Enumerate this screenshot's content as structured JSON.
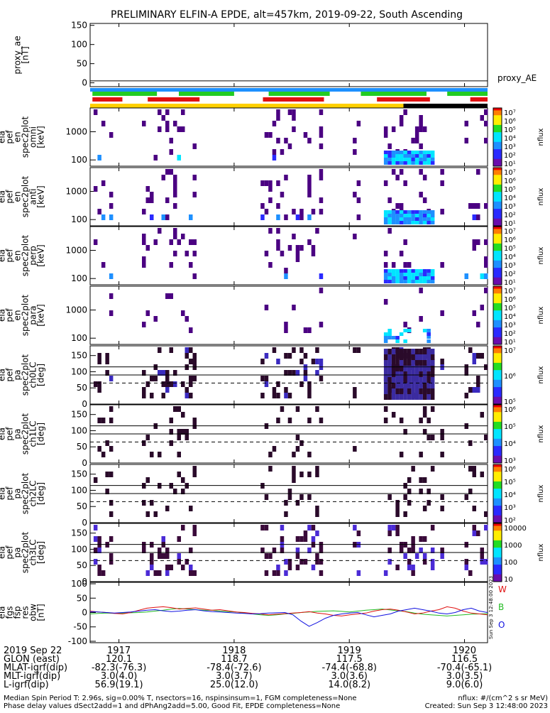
{
  "title": "PRELIMINARY ELFIN-A EPDE, alt=457km, 2019-09-22, South Ascending",
  "colors": {
    "bar_blue": "#1e90ff",
    "bar_green": "#22cc22",
    "bar_red": "#e01010",
    "bar_yellow": "#ffd000",
    "bar_black": "#000000"
  },
  "proxy_panel": {
    "ylabel": [
      "proxy_ae",
      "[nT]"
    ],
    "yticks": [
      "150",
      "100",
      "50",
      "0"
    ],
    "ylim": [
      -10,
      155
    ],
    "trace_label": "proxy_AE",
    "trace_value": 5
  },
  "flux_panels": [
    {
      "ylabel": [
        "ela",
        "pef",
        "en",
        "spec2plot",
        "omni",
        "[keV]"
      ],
      "yticks": [
        "1000",
        "100"
      ]
    },
    {
      "ylabel": [
        "ela",
        "pef",
        "en",
        "spec2plot",
        "anti",
        "[keV]"
      ],
      "yticks": [
        "1000",
        "100"
      ]
    },
    {
      "ylabel": [
        "ela",
        "pef",
        "en",
        "spec2plot",
        "perp",
        "[keV]"
      ],
      "yticks": [
        "1000",
        "100"
      ]
    },
    {
      "ylabel": [
        "ela",
        "pef",
        "en",
        "spec2plot",
        "para",
        "[keV]"
      ],
      "yticks": [
        "1000",
        "100"
      ]
    }
  ],
  "pa_panels": [
    {
      "ylabel": [
        "ela",
        "pef",
        "pa",
        "spec2plot",
        "ch0LC",
        "[deg]"
      ],
      "yticks": [
        "150",
        "100",
        "50",
        "0"
      ]
    },
    {
      "ylabel": [
        "ela",
        "pef",
        "pa",
        "spec2plot",
        "ch1LC",
        "[deg]"
      ],
      "yticks": [
        "150",
        "100",
        "50",
        "0"
      ]
    },
    {
      "ylabel": [
        "ela",
        "pef",
        "pa",
        "spec2plot",
        "ch2LC",
        "[deg]"
      ],
      "yticks": [
        "150",
        "100",
        "50",
        "0"
      ]
    },
    {
      "ylabel": [
        "ela",
        "pef",
        "pa",
        "spec2plot",
        "ch3LC",
        "[deg]"
      ],
      "yticks": [
        "150",
        "100",
        "50",
        "0"
      ]
    }
  ],
  "colorbars": [
    {
      "label": "nflux",
      "ticks": [
        "10⁷",
        "10⁶",
        "10⁵",
        "10⁴",
        "10³",
        "10²",
        "10¹"
      ]
    },
    {
      "label": "nflux",
      "ticks": [
        "10⁷",
        "10⁶",
        "10⁵",
        "10⁴",
        "10³",
        "10²",
        "10¹"
      ]
    },
    {
      "label": "nflux",
      "ticks": [
        "10⁷",
        "10⁶",
        "10⁵",
        "10⁴",
        "10³",
        "10²",
        "10¹"
      ]
    },
    {
      "label": "nflux",
      "ticks": [
        "10⁷",
        "10⁶",
        "10⁵",
        "10⁴",
        "10³",
        "10²",
        "10¹"
      ]
    },
    {
      "label": "nflux",
      "ticks": [
        "10⁷",
        "10⁶",
        "10⁵"
      ]
    },
    {
      "label": "nflux",
      "ticks": [
        "10⁶",
        "10⁵",
        "10⁴",
        "10³"
      ]
    },
    {
      "label": "nflux",
      "ticks": [
        "10⁶",
        "10⁵",
        "10⁴",
        "10³",
        "10²"
      ]
    },
    {
      "label": "nflux",
      "ticks": [
        "10000",
        "1000",
        "100",
        "10"
      ]
    }
  ],
  "mag_panel": {
    "ylabel": [
      "ela",
      "fgs",
      "fsp",
      "res",
      "obw",
      "[nT]"
    ],
    "yticks": [
      "100",
      "50",
      "0",
      "-50",
      "-100"
    ],
    "ylim": [
      -105,
      105
    ],
    "legend": [
      "W",
      "B",
      "O"
    ],
    "legend_colors": [
      "#e01010",
      "#22bb22",
      "#1010e0"
    ],
    "stamp": "Sun Sep 3 12:48:00 2023",
    "series": [
      {
        "color": "#22bb22",
        "values": [
          -5,
          -3,
          -2,
          -3,
          -2,
          -1,
          0,
          2,
          5,
          8,
          12,
          14,
          12,
          10,
          8,
          8,
          5,
          3,
          2,
          -2,
          -5,
          -8,
          -10,
          -8,
          -5,
          -3,
          0,
          2,
          4,
          5,
          6,
          4,
          2,
          5,
          8,
          10,
          12,
          9,
          6,
          3,
          -2,
          -6,
          -8,
          -10,
          -12,
          -10,
          -8,
          -6,
          -5,
          -4
        ]
      },
      {
        "color": "#e01010",
        "values": [
          5,
          2,
          0,
          -3,
          -5,
          0,
          8,
          15,
          18,
          20,
          17,
          12,
          14,
          16,
          12,
          8,
          10,
          6,
          2,
          0,
          -3,
          -5,
          -8,
          -6,
          -4,
          -2,
          0,
          3,
          -2,
          -5,
          -10,
          -12,
          -8,
          -5,
          -2,
          5,
          10,
          12,
          8,
          2,
          -5,
          -2,
          5,
          10,
          20,
          15,
          5,
          -2,
          -5,
          -8
        ]
      },
      {
        "color": "#1010e0",
        "values": [
          3,
          2,
          0,
          -2,
          0,
          2,
          5,
          8,
          10,
          6,
          3,
          5,
          8,
          10,
          6,
          3,
          2,
          0,
          -2,
          -3,
          -5,
          -4,
          -2,
          -1,
          0,
          -8,
          -30,
          -48,
          -35,
          -20,
          -10,
          -5,
          -2,
          0,
          -8,
          -15,
          -10,
          -5,
          5,
          10,
          15,
          10,
          5,
          -2,
          -5,
          0,
          10,
          15,
          5,
          0
        ]
      }
    ]
  },
  "x_axis": {
    "range": [
      0.0,
      3.45
    ],
    "ticks": [
      {
        "t": 0.25,
        "label": "1917"
      },
      {
        "t": 1.25,
        "label": "1918"
      },
      {
        "t": 2.25,
        "label": "1919"
      },
      {
        "t": 3.25,
        "label": "1920"
      }
    ]
  },
  "bottom_rows": [
    {
      "label": "2019 Sep 22",
      "values": [
        "1917",
        "1918",
        "1919",
        "1920"
      ]
    },
    {
      "label": "GLON (east)",
      "values": [
        "120.1",
        "118.7",
        "117.5",
        "116.5"
      ]
    },
    {
      "label": "MLAT-igrf(dip)",
      "values": [
        "-82.3(-76.3)",
        "-78.4(-72.6)",
        "-74.4(-68.8)",
        "-70.4(-65.1)"
      ]
    },
    {
      "label": "MLT-igrf(dip)",
      "values": [
        "3.0(4.0)",
        "3.0(3.7)",
        "3.0(3.6)",
        "3.0(3.5)"
      ]
    },
    {
      "label": "L-igrf(dip)",
      "values": [
        "56.9(19.1)",
        "25.0(12.0)",
        "14.0(8.2)",
        "9.0(6.0)"
      ]
    }
  ],
  "footer": {
    "left1": "Median Spin Period T: 2.96s, sig=0.00% T, nsectors=16, nspinsinsum=1, FGM completeness=None",
    "left2": "Phase delay values dSect2add=1 and dPhAng2add=5.00, Good Fit, EPDE completeness=None",
    "right1": "nflux: #/(cm^2 s sr MeV)",
    "right2": "Created: Sun Sep  3 12:48:00 2023"
  }
}
